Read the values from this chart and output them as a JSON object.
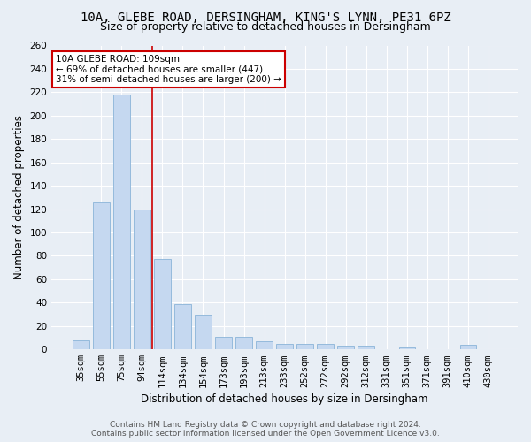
{
  "title1": "10A, GLEBE ROAD, DERSINGHAM, KING'S LYNN, PE31 6PZ",
  "title2": "Size of property relative to detached houses in Dersingham",
  "xlabel": "Distribution of detached houses by size in Dersingham",
  "ylabel": "Number of detached properties",
  "categories": [
    "35sqm",
    "55sqm",
    "75sqm",
    "94sqm",
    "114sqm",
    "134sqm",
    "154sqm",
    "173sqm",
    "193sqm",
    "213sqm",
    "233sqm",
    "252sqm",
    "272sqm",
    "292sqm",
    "312sqm",
    "331sqm",
    "351sqm",
    "371sqm",
    "391sqm",
    "410sqm",
    "430sqm"
  ],
  "values": [
    8,
    126,
    218,
    120,
    77,
    39,
    30,
    11,
    11,
    7,
    5,
    5,
    5,
    3,
    3,
    0,
    2,
    0,
    0,
    4,
    0
  ],
  "bar_color": "#c5d8f0",
  "bar_edge_color": "#8ab4d8",
  "vline_x_index": 3.5,
  "vline_color": "#cc0000",
  "annotation_line1": "10A GLEBE ROAD: 109sqm",
  "annotation_line2": "← 69% of detached houses are smaller (447)",
  "annotation_line3": "31% of semi-detached houses are larger (200) →",
  "annotation_box_color": "#ffffff",
  "annotation_box_edge": "#cc0000",
  "ylim": [
    0,
    260
  ],
  "yticks": [
    0,
    20,
    40,
    60,
    80,
    100,
    120,
    140,
    160,
    180,
    200,
    220,
    240,
    260
  ],
  "footnote1": "Contains HM Land Registry data © Crown copyright and database right 2024.",
  "footnote2": "Contains public sector information licensed under the Open Government Licence v3.0.",
  "bg_color": "#e8eef5",
  "plot_bg_color": "#e8eef5",
  "title_fontsize": 10,
  "subtitle_fontsize": 9,
  "axis_label_fontsize": 8.5,
  "tick_fontsize": 7.5,
  "footnote_fontsize": 6.5
}
